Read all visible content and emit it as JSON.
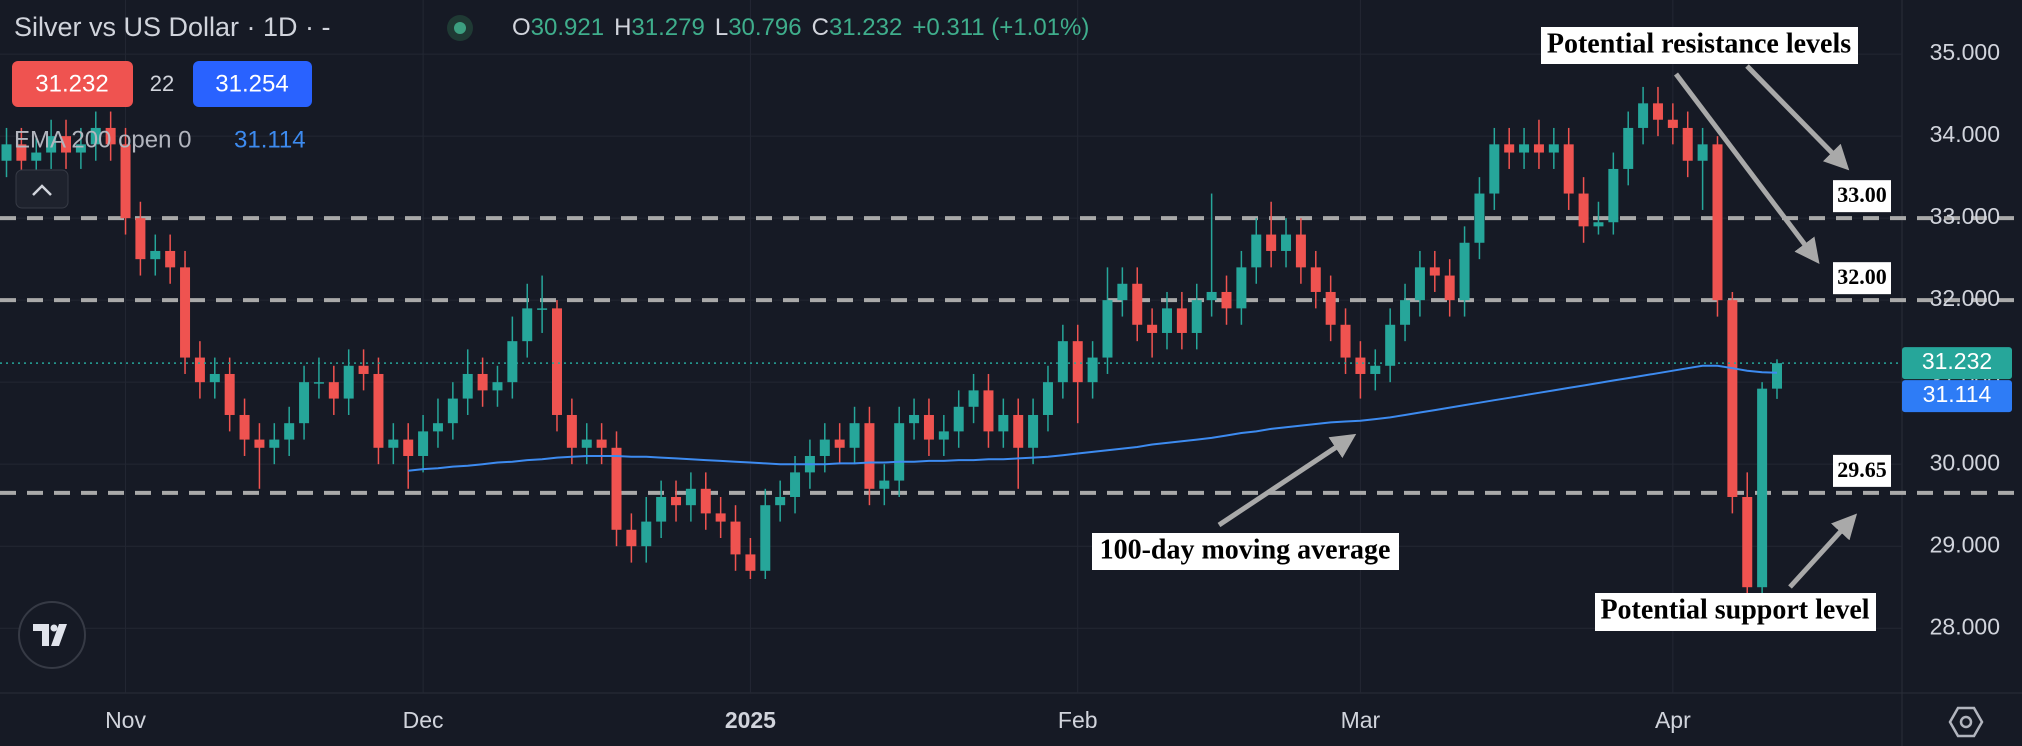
{
  "chart_data": {
    "type": "candlestick",
    "title": "Silver vs US Dollar · 1D · -",
    "header": {
      "ohlc": [
        {
          "key": "O",
          "value": 30.921
        },
        {
          "key": "H",
          "value": 31.279
        },
        {
          "key": "L",
          "value": 30.796
        },
        {
          "key": "C",
          "value": 31.232
        }
      ],
      "change": "+0.311 (+1.01%)",
      "sell": 31.232,
      "spread": 22,
      "buy": 31.254,
      "indicator_value": 31.114
    },
    "categories": [
      null,
      null,
      null,
      null,
      null,
      null,
      null,
      null,
      "Nov",
      null,
      null,
      null,
      null,
      null,
      null,
      null,
      null,
      null,
      null,
      null,
      null,
      null,
      null,
      null,
      null,
      null,
      null,
      null,
      "Dec",
      null,
      null,
      null,
      null,
      null,
      null,
      null,
      null,
      null,
      null,
      null,
      null,
      null,
      null,
      null,
      null,
      null,
      null,
      null,
      null,
      null,
      "2025",
      null,
      null,
      null,
      null,
      null,
      null,
      null,
      null,
      null,
      null,
      null,
      null,
      null,
      null,
      null,
      null,
      null,
      null,
      null,
      null,
      null,
      "Feb",
      null,
      null,
      null,
      null,
      null,
      null,
      null,
      null,
      null,
      null,
      null,
      null,
      null,
      null,
      null,
      null,
      null,
      null,
      "Mar",
      null,
      null,
      null,
      null,
      null,
      null,
      null,
      null,
      null,
      null,
      null,
      null,
      null,
      null,
      null,
      null,
      null,
      null,
      null,
      null,
      "Apr",
      null,
      null,
      null,
      null,
      null,
      null,
      null
    ],
    "open": [
      33.7,
      33.9,
      33.7,
      33.8,
      34.0,
      33.8,
      33.9,
      34.1,
      33.9,
      33.0,
      32.5,
      32.6,
      32.4,
      31.3,
      31.0,
      31.1,
      30.6,
      30.3,
      30.2,
      30.3,
      30.5,
      31.0,
      31.0,
      30.8,
      31.2,
      31.1,
      30.2,
      30.3,
      30.1,
      30.4,
      30.5,
      30.8,
      31.1,
      30.9,
      31.0,
      31.5,
      31.9,
      31.9,
      30.6,
      30.2,
      30.3,
      30.2,
      29.2,
      29.0,
      29.3,
      29.6,
      29.5,
      29.7,
      29.4,
      29.3,
      28.9,
      28.7,
      29.5,
      29.6,
      29.9,
      30.1,
      30.3,
      30.2,
      30.5,
      29.7,
      29.8,
      30.5,
      30.6,
      30.3,
      30.4,
      30.7,
      30.9,
      30.4,
      30.6,
      30.2,
      30.6,
      31.0,
      31.5,
      31.0,
      31.3,
      32.0,
      32.2,
      31.7,
      31.6,
      31.9,
      31.6,
      32.0,
      32.1,
      31.9,
      32.4,
      32.8,
      32.6,
      32.8,
      32.4,
      32.1,
      31.7,
      31.3,
      31.1,
      31.2,
      31.7,
      32.0,
      32.4,
      32.3,
      32.0,
      32.7,
      33.3,
      33.9,
      33.8,
      33.9,
      33.8,
      33.9,
      33.3,
      32.9,
      32.95,
      33.6,
      34.1,
      34.4,
      34.2,
      34.1,
      33.7,
      33.9,
      32.0,
      29.6,
      28.5,
      30.921
    ],
    "high": [
      34.1,
      34.1,
      34.0,
      34.2,
      34.2,
      34.1,
      34.3,
      34.3,
      34.1,
      33.2,
      32.8,
      32.8,
      32.6,
      31.5,
      31.3,
      31.3,
      30.8,
      30.5,
      30.5,
      30.7,
      31.2,
      31.3,
      31.2,
      31.4,
      31.4,
      31.3,
      30.5,
      30.5,
      30.6,
      30.8,
      31.0,
      31.4,
      31.3,
      31.2,
      31.8,
      32.2,
      32.3,
      32.0,
      30.8,
      30.5,
      30.5,
      30.4,
      29.4,
      29.6,
      29.8,
      29.8,
      29.9,
      29.9,
      29.6,
      29.5,
      29.1,
      29.7,
      29.8,
      30.1,
      30.3,
      30.5,
      30.5,
      30.7,
      30.7,
      30.0,
      30.7,
      30.8,
      30.8,
      30.6,
      30.9,
      31.1,
      31.1,
      30.8,
      30.8,
      30.8,
      31.2,
      31.7,
      31.7,
      31.5,
      32.4,
      32.4,
      32.4,
      31.9,
      32.1,
      32.1,
      32.2,
      33.3,
      32.3,
      32.6,
      33.0,
      33.2,
      33.0,
      33.0,
      32.6,
      32.3,
      31.9,
      31.5,
      31.4,
      31.9,
      32.2,
      32.6,
      32.6,
      32.5,
      32.9,
      33.5,
      34.1,
      34.1,
      34.1,
      34.2,
      34.1,
      34.1,
      33.5,
      33.2,
      33.8,
      34.3,
      34.6,
      34.6,
      34.4,
      34.3,
      34.1,
      34.0,
      32.1,
      29.9,
      31.0,
      31.279
    ],
    "low": [
      33.5,
      33.5,
      33.5,
      33.6,
      33.6,
      33.6,
      33.7,
      33.7,
      32.8,
      32.3,
      32.3,
      32.2,
      31.1,
      30.8,
      30.8,
      30.4,
      30.1,
      29.7,
      30.0,
      30.1,
      30.3,
      30.8,
      30.6,
      30.6,
      30.9,
      30.0,
      30.0,
      29.7,
      29.9,
      30.2,
      30.3,
      30.6,
      30.7,
      30.7,
      30.8,
      31.3,
      31.6,
      30.4,
      30.0,
      30.0,
      30.0,
      29.0,
      28.8,
      28.8,
      29.1,
      29.3,
      29.3,
      29.2,
      29.1,
      28.7,
      28.6,
      28.6,
      29.3,
      29.4,
      29.7,
      29.9,
      30.0,
      30.0,
      29.5,
      29.5,
      29.6,
      30.3,
      30.1,
      30.1,
      30.2,
      30.5,
      30.2,
      30.2,
      29.7,
      30.0,
      30.4,
      30.8,
      30.5,
      30.8,
      31.1,
      31.8,
      31.5,
      31.3,
      31.4,
      31.4,
      31.4,
      31.8,
      31.7,
      31.7,
      32.2,
      32.4,
      32.4,
      32.2,
      31.9,
      31.5,
      31.1,
      30.8,
      30.9,
      31.0,
      31.5,
      31.8,
      32.1,
      31.8,
      31.8,
      32.5,
      33.1,
      33.6,
      33.6,
      33.6,
      33.6,
      33.1,
      32.7,
      32.8,
      32.8,
      33.4,
      33.9,
      34.0,
      33.9,
      33.5,
      33.1,
      31.8,
      29.4,
      28.0,
      28.3,
      30.796
    ],
    "close": [
      33.9,
      33.7,
      33.8,
      34.0,
      33.8,
      33.9,
      34.1,
      33.9,
      33.0,
      32.5,
      32.6,
      32.4,
      31.3,
      31.0,
      31.1,
      30.6,
      30.3,
      30.2,
      30.3,
      30.5,
      31.0,
      31.0,
      30.8,
      31.2,
      31.1,
      30.2,
      30.3,
      30.1,
      30.4,
      30.5,
      30.8,
      31.1,
      30.9,
      31.0,
      31.5,
      31.9,
      31.9,
      30.6,
      30.2,
      30.3,
      30.2,
      29.2,
      29.0,
      29.3,
      29.6,
      29.5,
      29.7,
      29.4,
      29.3,
      28.9,
      28.7,
      29.5,
      29.6,
      29.9,
      30.1,
      30.3,
      30.2,
      30.5,
      29.7,
      29.8,
      30.5,
      30.6,
      30.3,
      30.4,
      30.7,
      30.9,
      30.4,
      30.6,
      30.2,
      30.6,
      31.0,
      31.5,
      31.0,
      31.3,
      32.0,
      32.2,
      31.7,
      31.6,
      31.9,
      31.6,
      32.0,
      32.1,
      31.9,
      32.4,
      32.8,
      32.6,
      32.8,
      32.4,
      32.1,
      31.7,
      31.3,
      31.1,
      31.2,
      31.7,
      32.0,
      32.4,
      32.3,
      32.0,
      32.7,
      33.3,
      33.9,
      33.8,
      33.9,
      33.8,
      33.9,
      33.3,
      32.9,
      32.95,
      33.6,
      34.1,
      34.4,
      34.2,
      34.1,
      33.7,
      33.9,
      32.0,
      29.6,
      28.5,
      30.921,
      31.232
    ],
    "up_color": "#26a69a",
    "down_color": "#ef5350",
    "series": [
      {
        "name": "EMA 200 open 0",
        "color": "#3d8bf0",
        "values": [
          null,
          null,
          null,
          null,
          null,
          null,
          null,
          null,
          null,
          null,
          null,
          null,
          null,
          null,
          null,
          null,
          null,
          null,
          null,
          null,
          null,
          null,
          null,
          null,
          null,
          null,
          null,
          29.92,
          29.94,
          29.95,
          29.97,
          29.98,
          30.0,
          30.02,
          30.03,
          30.05,
          30.06,
          30.08,
          30.09,
          30.1,
          30.1,
          30.1,
          30.09,
          30.09,
          30.08,
          30.07,
          30.06,
          30.05,
          30.04,
          30.03,
          30.02,
          30.01,
          30.0,
          30.0,
          30.0,
          30.0,
          30.01,
          30.01,
          30.02,
          30.02,
          30.03,
          30.03,
          30.04,
          30.04,
          30.05,
          30.05,
          30.06,
          30.06,
          30.07,
          30.08,
          30.09,
          30.11,
          30.13,
          30.15,
          30.17,
          30.19,
          30.21,
          30.24,
          30.26,
          30.28,
          30.3,
          30.32,
          30.35,
          30.38,
          30.4,
          30.43,
          30.45,
          30.47,
          30.49,
          30.51,
          30.52,
          30.53,
          30.55,
          30.57,
          30.6,
          30.63,
          30.66,
          30.69,
          30.72,
          30.75,
          30.78,
          30.81,
          30.84,
          30.87,
          30.9,
          30.93,
          30.96,
          30.99,
          31.02,
          31.05,
          31.08,
          31.11,
          31.14,
          31.17,
          31.2,
          31.2,
          31.17,
          31.14,
          31.12,
          31.114
        ]
      }
    ],
    "ylim": [
      27.21,
      35.66
    ],
    "yticks": [
      {
        "value": 28,
        "label": "28.000"
      },
      {
        "value": 29,
        "label": "29.000"
      },
      {
        "value": 30,
        "label": "30.000"
      },
      {
        "value": 31,
        "label": "31.000"
      },
      {
        "value": 32,
        "label": "32.000"
      },
      {
        "value": 33,
        "label": "33.000"
      },
      {
        "value": 34,
        "label": "34.000"
      },
      {
        "value": 35,
        "label": "35.000"
      }
    ],
    "grid": true,
    "last_price": {
      "value": 31.232,
      "color": "#26a69a"
    },
    "ema_tag": {
      "value": 31.114,
      "color": "#2e7cf6"
    },
    "levels": [
      {
        "value": 33,
        "label": "33.00"
      },
      {
        "value": 32,
        "label": "32.00"
      },
      {
        "value": 29.65,
        "label": "29.65"
      }
    ],
    "annotations": [
      "Potential resistance levels",
      "100-day moving average",
      "Potential support level"
    ]
  }
}
